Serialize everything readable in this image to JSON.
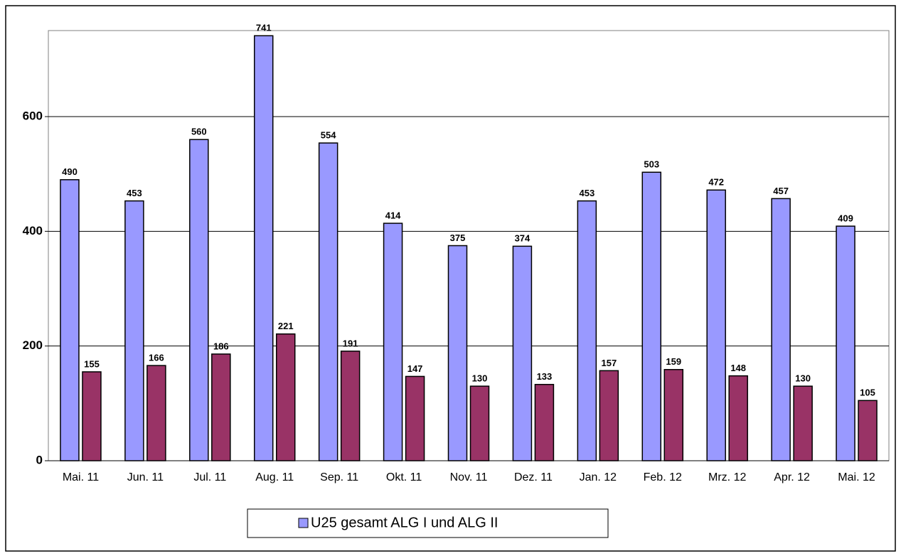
{
  "chart_data": {
    "type": "bar",
    "categories": [
      "Mai. 11",
      "Jun. 11",
      "Jul. 11",
      "Aug. 11",
      "Sep. 11",
      "Okt. 11",
      "Nov. 11",
      "Dez. 11",
      "Jan. 12",
      "Feb. 12",
      "Mrz. 12",
      "Apr. 12",
      "Mai. 12"
    ],
    "series": [
      {
        "name": "U25 gesamt ALG I und ALG II",
        "color": "#9999ff",
        "values": [
          490,
          453,
          560,
          741,
          554,
          414,
          375,
          374,
          453,
          503,
          472,
          457,
          409
        ]
      },
      {
        "color": "#993366",
        "values": [
          155,
          166,
          186,
          221,
          191,
          147,
          130,
          133,
          157,
          159,
          148,
          130,
          105
        ]
      }
    ],
    "ylim": [
      0,
      750
    ],
    "yticks": [
      0,
      200,
      400,
      600
    ],
    "grid": true,
    "legend": "bottom"
  }
}
